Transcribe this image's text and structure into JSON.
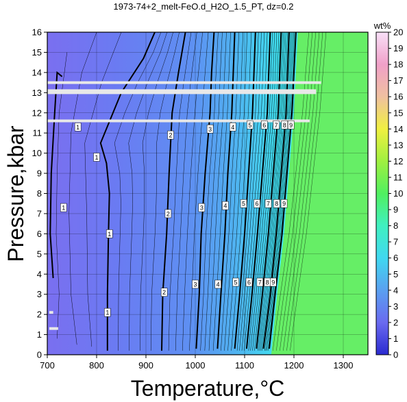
{
  "chart_data": {
    "type": "heatmap",
    "title": "1973-74+2_melt-FeO.d_H2O_1.5_PT, dz=0.2",
    "xlabel": "Temperature,°C",
    "ylabel": "Pressure,kbar",
    "xlim": [
      700,
      1350
    ],
    "ylim": [
      0,
      16
    ],
    "x_ticks": [
      "700",
      "800",
      "900",
      "1000",
      "1100",
      "1200",
      "1300"
    ],
    "y_ticks": [
      "0",
      "1",
      "2",
      "3",
      "4",
      "5",
      "6",
      "7",
      "8",
      "9",
      "10",
      "11",
      "12",
      "13",
      "14",
      "15",
      "16"
    ],
    "grid": true,
    "colorbar": {
      "label": "wt%",
      "range": [
        0,
        20
      ],
      "ticks": [
        "0",
        "1",
        "2",
        "3",
        "4",
        "5",
        "6",
        "7",
        "8",
        "9",
        "10",
        "11",
        "12",
        "13",
        "14",
        "15",
        "16",
        "17",
        "18",
        "19",
        "20"
      ]
    },
    "contour_interval": 0.2,
    "major_contours": [
      {
        "level": 1,
        "points": [
          [
            822,
            0.2
          ],
          [
            822,
            3
          ],
          [
            824,
            6
          ],
          [
            826,
            8
          ],
          [
            820,
            9.5
          ],
          [
            808,
            10.5
          ],
          [
            850,
            13
          ],
          [
            895,
            14.7
          ],
          [
            918,
            16
          ]
        ]
      },
      {
        "level": 2,
        "points": [
          [
            932,
            0.2
          ],
          [
            934,
            3
          ],
          [
            942,
            6
          ],
          [
            947,
            9
          ],
          [
            953,
            12
          ],
          [
            966,
            14
          ],
          [
            980,
            16
          ]
        ]
      },
      {
        "level": 3,
        "points": [
          [
            1002,
            0.3
          ],
          [
            1008,
            3
          ],
          [
            1012,
            6
          ],
          [
            1020,
            9
          ],
          [
            1030,
            12
          ],
          [
            1033,
            14
          ],
          [
            1038,
            16
          ]
        ]
      },
      {
        "level": 4,
        "points": [
          [
            1045,
            0.3
          ],
          [
            1052,
            3
          ],
          [
            1060,
            6
          ],
          [
            1066,
            9
          ],
          [
            1074,
            12
          ],
          [
            1080,
            16
          ]
        ]
      },
      {
        "level": 5,
        "points": [
          [
            1080,
            0.3
          ],
          [
            1090,
            3
          ],
          [
            1100,
            6
          ],
          [
            1108,
            9
          ],
          [
            1116,
            12
          ],
          [
            1122,
            16
          ]
        ]
      },
      {
        "level": 6,
        "points": [
          [
            1104,
            0.3
          ],
          [
            1115,
            3
          ],
          [
            1126,
            6
          ],
          [
            1136,
            9
          ],
          [
            1146,
            12
          ],
          [
            1152,
            16
          ]
        ]
      },
      {
        "level": 7,
        "points": [
          [
            1124,
            0.3
          ],
          [
            1136,
            3
          ],
          [
            1148,
            6
          ],
          [
            1158,
            9
          ],
          [
            1168,
            12
          ],
          [
            1174,
            16
          ]
        ]
      },
      {
        "level": 8,
        "points": [
          [
            1138,
            0.3
          ],
          [
            1152,
            3
          ],
          [
            1164,
            6
          ],
          [
            1174,
            9
          ],
          [
            1184,
            12
          ],
          [
            1190,
            16
          ]
        ]
      },
      {
        "level": 9,
        "points": [
          [
            1150,
            0.3
          ],
          [
            1162,
            3
          ],
          [
            1176,
            6
          ],
          [
            1186,
            9
          ],
          [
            1196,
            12
          ],
          [
            1204,
            16
          ]
        ]
      }
    ],
    "secondary_contour_1": [
      [
        712,
        3.8
      ],
      [
        706,
        6
      ],
      [
        708,
        9
      ],
      [
        715,
        12
      ],
      [
        720,
        14
      ],
      [
        730,
        13.8
      ]
    ],
    "contour_labels": [
      {
        "text": "1",
        "x": 762,
        "y": 11.3
      },
      {
        "text": "1",
        "x": 800,
        "y": 9.8
      },
      {
        "text": "1",
        "x": 733,
        "y": 7.3
      },
      {
        "text": "1",
        "x": 826,
        "y": 6.0
      },
      {
        "text": "1",
        "x": 822,
        "y": 2.1
      },
      {
        "text": "2",
        "x": 950,
        "y": 10.9
      },
      {
        "text": "2",
        "x": 945,
        "y": 7.0
      },
      {
        "text": "2",
        "x": 937,
        "y": 3.1
      },
      {
        "text": "3",
        "x": 1030,
        "y": 11.2
      },
      {
        "text": "3",
        "x": 1013,
        "y": 7.3
      },
      {
        "text": "3",
        "x": 1000,
        "y": 3.5
      },
      {
        "text": "4",
        "x": 1076,
        "y": 11.3
      },
      {
        "text": "4",
        "x": 1061,
        "y": 7.4
      },
      {
        "text": "4",
        "x": 1046,
        "y": 3.5
      },
      {
        "text": "5",
        "x": 1111,
        "y": 11.4
      },
      {
        "text": "5",
        "x": 1098,
        "y": 7.5
      },
      {
        "text": "5",
        "x": 1082,
        "y": 3.6
      },
      {
        "text": "6",
        "x": 1140,
        "y": 11.4
      },
      {
        "text": "6",
        "x": 1125,
        "y": 7.5
      },
      {
        "text": "6",
        "x": 1109,
        "y": 3.6
      },
      {
        "text": "7",
        "x": 1164,
        "y": 11.4
      },
      {
        "text": "7",
        "x": 1148,
        "y": 7.5
      },
      {
        "text": "7",
        "x": 1131,
        "y": 3.6
      },
      {
        "text": "8",
        "x": 1181,
        "y": 11.4
      },
      {
        "text": "8",
        "x": 1165,
        "y": 7.5
      },
      {
        "text": "8",
        "x": 1146,
        "y": 3.6
      },
      {
        "text": "9",
        "x": 1194,
        "y": 11.4
      },
      {
        "text": "9",
        "x": 1180,
        "y": 7.5
      },
      {
        "text": "9",
        "x": 1158,
        "y": 3.6
      }
    ],
    "saturated_region": {
      "value_color": "#66ee66",
      "boundary": [
        [
          1154,
          0
        ],
        [
          1166,
          3
        ],
        [
          1180,
          6
        ],
        [
          1190,
          9
        ],
        [
          1200,
          12
        ],
        [
          1208,
          16
        ]
      ]
    },
    "colors": {
      "background_low": "#7a6ff0",
      "background_mid": "#5e8cf2",
      "background_high": "#44d4f0",
      "saturated": "#66ee66",
      "contour": "#000000",
      "gap_lines": "#e8e8e8"
    },
    "data_gaps": [
      {
        "y": 13.5,
        "x_start": 700,
        "x_end": 1255
      },
      {
        "y": 13.1,
        "x_start": 700,
        "x_end": 1245
      },
      {
        "y": 13.0,
        "x_start": 700,
        "x_end": 1245
      },
      {
        "y": 11.6,
        "x_start": 700,
        "x_end": 1232
      },
      {
        "y": 2.1,
        "x_start": 704,
        "x_end": 712
      },
      {
        "y": 1.3,
        "x_start": 704,
        "x_end": 722
      }
    ]
  }
}
